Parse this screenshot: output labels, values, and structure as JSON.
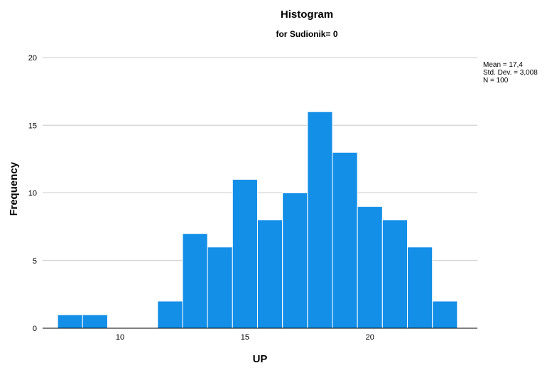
{
  "chart_data": {
    "type": "bar",
    "title": "Histogram",
    "subtitle": "for Sudionik= 0",
    "xlabel": "UP",
    "ylabel": "Frequency",
    "ylim": [
      0,
      21
    ],
    "xlim": [
      6.9,
      24.3
    ],
    "y_ticks": [
      0,
      5,
      10,
      15,
      20
    ],
    "x_ticks": [
      10,
      15,
      20
    ],
    "grid": true,
    "bar_color": "#148fe8",
    "bins": [
      {
        "start": 7.5,
        "end": 8.5,
        "value": 1
      },
      {
        "start": 8.5,
        "end": 9.5,
        "value": 1
      },
      {
        "start": 9.5,
        "end": 10.5,
        "value": 0
      },
      {
        "start": 10.5,
        "end": 11.5,
        "value": 0
      },
      {
        "start": 11.5,
        "end": 12.5,
        "value": 2
      },
      {
        "start": 12.5,
        "end": 13.5,
        "value": 7
      },
      {
        "start": 13.5,
        "end": 14.5,
        "value": 6
      },
      {
        "start": 14.5,
        "end": 15.5,
        "value": 11
      },
      {
        "start": 15.5,
        "end": 16.5,
        "value": 8
      },
      {
        "start": 16.5,
        "end": 17.5,
        "value": 10
      },
      {
        "start": 17.5,
        "end": 18.5,
        "value": 16
      },
      {
        "start": 18.5,
        "end": 19.5,
        "value": 13
      },
      {
        "start": 19.5,
        "end": 20.5,
        "value": 9
      },
      {
        "start": 20.5,
        "end": 21.5,
        "value": 8
      },
      {
        "start": 21.5,
        "end": 22.5,
        "value": 6
      },
      {
        "start": 22.5,
        "end": 23.5,
        "value": 2
      }
    ],
    "stats": {
      "mean": "Mean = 17,4",
      "std_dev": "Std. Dev. = 3,008",
      "n": "N = 100"
    },
    "stats_placement": "right"
  }
}
